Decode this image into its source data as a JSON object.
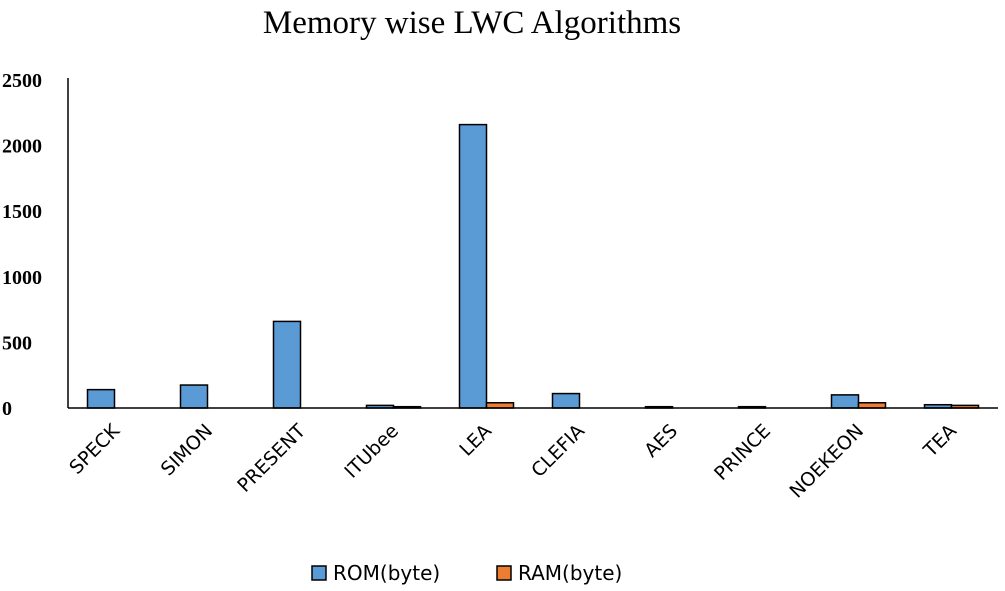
{
  "chart_data": {
    "type": "bar",
    "title": "Memory wise LWC Algorithms",
    "xlabel": "",
    "ylabel": "",
    "categories": [
      "SPECK",
      "SIMON",
      "PRESENT",
      "ITUbee",
      "LEA",
      "CLEFIA",
      "AES",
      "PRINCE",
      "NOEKEON",
      "TEA"
    ],
    "series": [
      {
        "name": "ROM(byte)",
        "color": "#5b9bd5",
        "values": [
          140,
          175,
          660,
          20,
          2160,
          110,
          10,
          10,
          100,
          25
        ]
      },
      {
        "name": "RAM(byte)",
        "color": "#ed7d31",
        "values": [
          0,
          0,
          0,
          10,
          40,
          0,
          0,
          0,
          40,
          20
        ]
      }
    ],
    "ylim": [
      0,
      2500
    ],
    "yticks": [
      0,
      500,
      1000,
      1500,
      2000,
      2500
    ],
    "grid": false,
    "legend_position": "bottom"
  }
}
